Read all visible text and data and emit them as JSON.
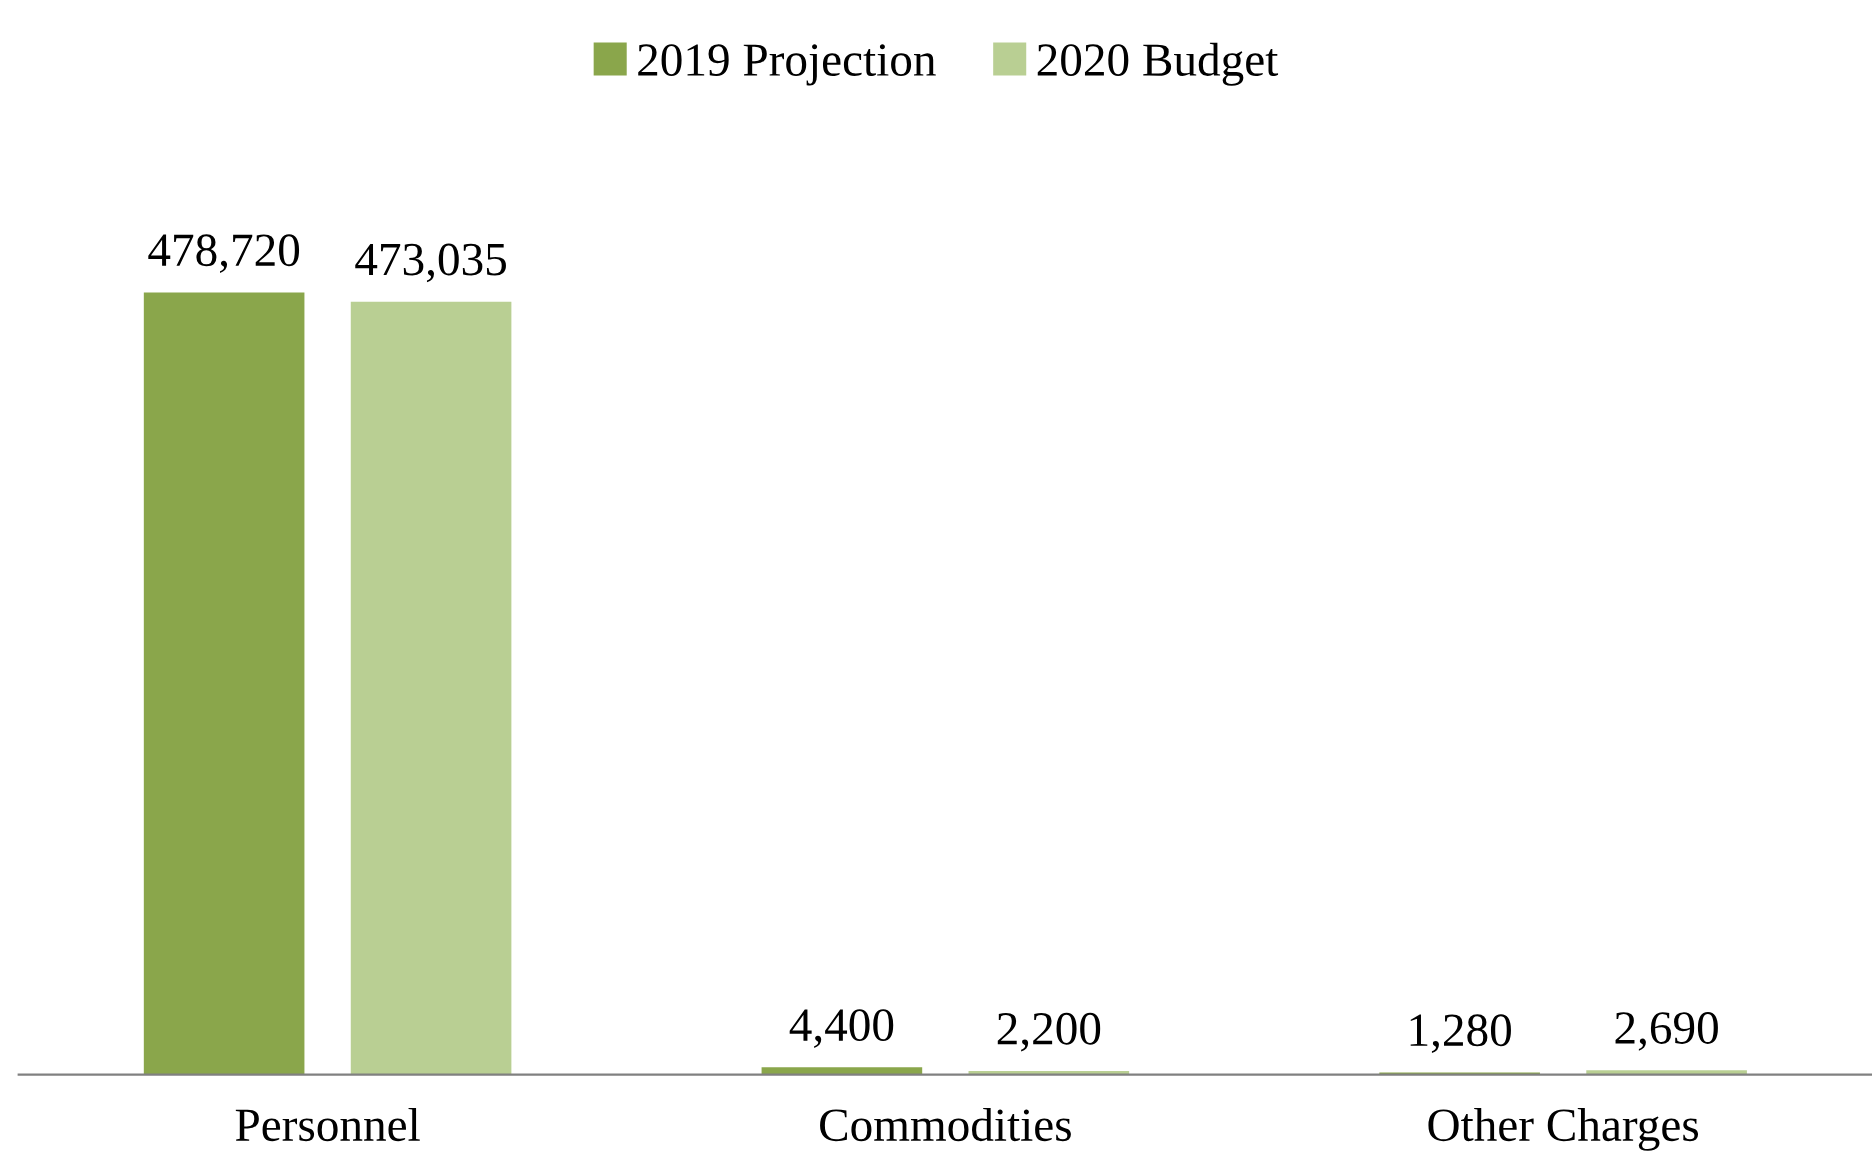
{
  "chart_data": {
    "type": "bar",
    "categories": [
      "Personnel",
      "Commodities",
      "Other Charges"
    ],
    "series": [
      {
        "name": "2019 Projection",
        "color": "#8aa64b",
        "values": [
          478720,
          4400,
          1280
        ],
        "value_labels": [
          "478,720",
          "4,400",
          "1,280"
        ]
      },
      {
        "name": "2020 Budget",
        "color": "#b9cf93",
        "values": [
          473035,
          2200,
          2690
        ],
        "value_labels": [
          "473,035",
          "2,200",
          "2,690"
        ]
      }
    ],
    "legend": "top",
    "grid": false
  }
}
